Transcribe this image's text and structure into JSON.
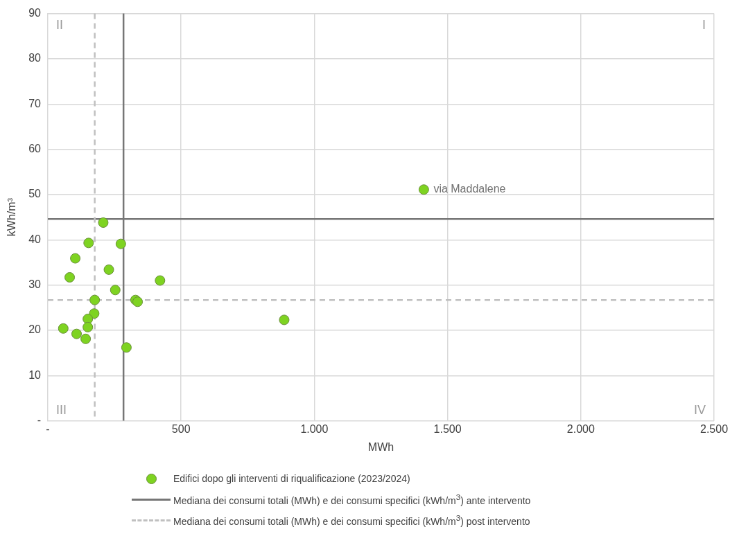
{
  "chart_data": {
    "type": "scatter",
    "xlabel": "MWh",
    "ylabel": "kWh/m³",
    "series": [
      {
        "name": "Edifici dopo gli interventi di riqualificazione (2023/2024)",
        "color": "#7ed321",
        "x": [
          208,
          153,
          274,
          103,
          229,
          82,
          421,
          253,
          176,
          329,
          337,
          174,
          150,
          150,
          58,
          108,
          142,
          295,
          887,
          1411
        ],
        "values": [
          43.8,
          39.3,
          39.1,
          35.9,
          33.4,
          31.7,
          31.0,
          28.9,
          26.7,
          26.7,
          26.3,
          23.7,
          22.5,
          20.7,
          20.4,
          19.2,
          18.1,
          16.2,
          22.3,
          51.1
        ]
      }
    ],
    "marker": "circle",
    "ref_lines": [
      {
        "axis": "x",
        "value": 284,
        "color": "#767676",
        "line_style": "solid",
        "label": "Mediana dei consumi totali (MWh) e dei consumi specifici (kWh/m$^{3}$) ante intervento"
      },
      {
        "axis": "y",
        "value": 44.6,
        "color": "#767676",
        "line_style": "solid"
      },
      {
        "axis": "x",
        "value": 176,
        "color": "#c0c0c0",
        "line_style": "dashed",
        "label": "Mediana dei consumi totali (MWh) e dei consumi specifici (kWh/m$^{3}$) post intervento"
      },
      {
        "axis": "y",
        "value": 26.7,
        "color": "#c0c0c0",
        "line_style": "dashed"
      }
    ],
    "annotations": [
      "I",
      "II",
      "III",
      "IV",
      {
        "text": "via Maddalene",
        "x": 1411,
        "y": 51.1
      }
    ],
    "xlim": [
      0,
      2500
    ],
    "xticks": [
      {
        "value": 0,
        "label": "-"
      },
      500,
      {
        "value": 1000,
        "label": "1.000"
      },
      {
        "value": 1500,
        "label": "1.500"
      },
      {
        "value": 2000,
        "label": "2.000"
      },
      {
        "value": 2500,
        "label": "2.500"
      }
    ],
    "ylim": [
      0,
      90
    ],
    "yticks": [
      {
        "value": 0,
        "label": "-"
      },
      10,
      20,
      30,
      40,
      50,
      60,
      70,
      80,
      90
    ],
    "grid": true,
    "legend": "bottom"
  }
}
